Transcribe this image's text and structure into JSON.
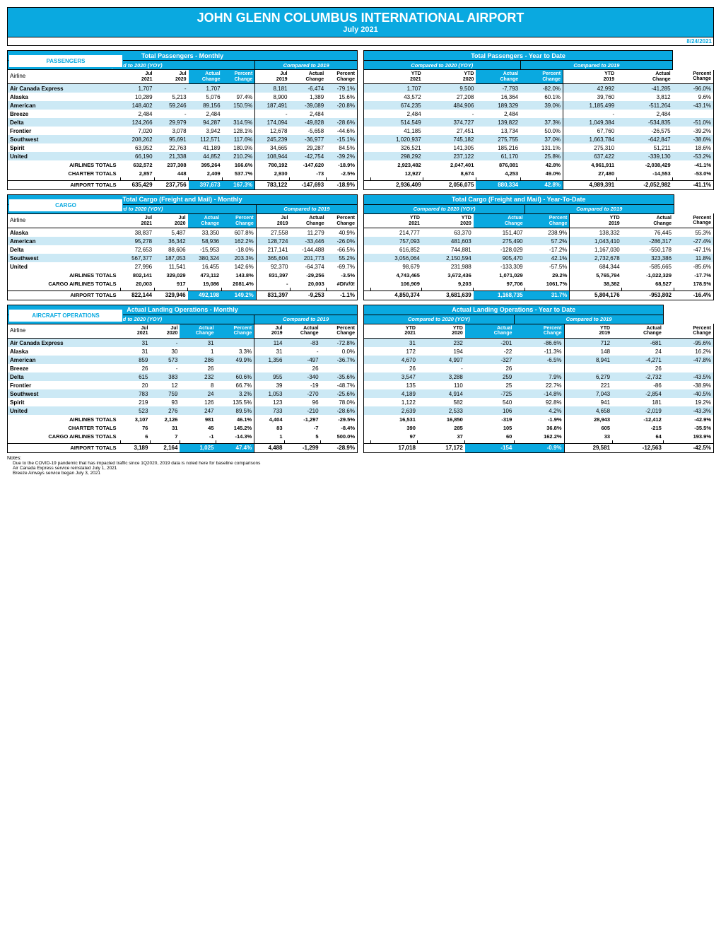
{
  "report": {
    "title": "JOHN GLENN COLUMBUS INTERNATIONAL AIRPORT",
    "subtitle": "July 2021",
    "date": "8/24/2021",
    "notes_header": "Notes:",
    "notes": [
      "Due to the COVID-19 pandemic that has impacted traffic since 1Q2020, 2019 data is noted here for baseline comparisons",
      "Air Canada Express service reinstated July 1, 2021",
      "Breeze Airways service began July 3, 2021"
    ]
  },
  "labels": {
    "passengers": "PASSENGERS",
    "cargo": "CARGO",
    "ops": "AIRCRAFT OPERATIONS",
    "pax_monthly": "Total Passengers - Monthly",
    "pax_ytd": "Total Passengers - Year to Date",
    "cargo_monthly": "Total Cargo (Freight and Mail) - Monthly",
    "cargo_ytd": "Total Cargo (Freight and Mail) - Year-To-Date",
    "ops_monthly": "Actual Landing Operations - Monthly",
    "ops_ytd": "Actual Landing Operations - Year to Date",
    "cmp2020": "Compared to 2020 (YOY)",
    "cmp2019": "Compared to 2019",
    "airline": "Airline",
    "jul2021": "Jul 2021",
    "jul2020": "Jul 2020",
    "jul2019": "Jul 2019",
    "ytd2021": "YTD 2021",
    "ytd2020": "YTD 2020",
    "ytd2019": "YTD 2019",
    "actual_change": "Actual Change",
    "percent_change": "Percent Change",
    "airlines_totals": "AIRLINES TOTALS",
    "charter_totals": "CHARTER TOTALS",
    "cargo_totals": "CARGO AIRLINES TOTALS",
    "airport_totals": "AIRPORT TOTALS"
  },
  "passengers": {
    "rows": [
      {
        "name": "Air Canada Express",
        "striped": true,
        "m": [
          "1,707",
          "-",
          "1,707",
          "",
          "8,181",
          "-6,474",
          "-79.1%"
        ],
        "y": [
          "1,707",
          "9,500",
          "-7,793",
          "-82.0%",
          "42,992",
          "-41,285",
          "-96.0%"
        ]
      },
      {
        "name": "Alaska",
        "striped": false,
        "m": [
          "10,289",
          "5,213",
          "5,076",
          "97.4%",
          "8,900",
          "1,389",
          "15.6%"
        ],
        "y": [
          "43,572",
          "27,208",
          "16,364",
          "60.1%",
          "39,760",
          "3,812",
          "9.6%"
        ]
      },
      {
        "name": "American",
        "striped": true,
        "m": [
          "148,402",
          "59,246",
          "89,156",
          "150.5%",
          "187,491",
          "-39,089",
          "-20.8%"
        ],
        "y": [
          "674,235",
          "484,906",
          "189,329",
          "39.0%",
          "1,185,499",
          "-511,264",
          "-43.1%"
        ]
      },
      {
        "name": "Breeze",
        "striped": false,
        "m": [
          "2,484",
          "-",
          "2,484",
          "",
          "-",
          "2,484",
          ""
        ],
        "y": [
          "2,484",
          "-",
          "2,484",
          "",
          "-",
          "2,484",
          ""
        ]
      },
      {
        "name": "Delta",
        "striped": true,
        "m": [
          "124,266",
          "29,979",
          "94,287",
          "314.5%",
          "174,094",
          "-49,828",
          "-28.6%"
        ],
        "y": [
          "514,549",
          "374,727",
          "139,822",
          "37.3%",
          "1,049,384",
          "-534,835",
          "-51.0%"
        ]
      },
      {
        "name": "Frontier",
        "striped": false,
        "m": [
          "7,020",
          "3,078",
          "3,942",
          "128.1%",
          "12,678",
          "-5,658",
          "-44.6%"
        ],
        "y": [
          "41,185",
          "27,451",
          "13,734",
          "50.0%",
          "67,760",
          "-26,575",
          "-39.2%"
        ]
      },
      {
        "name": "Southwest",
        "striped": true,
        "m": [
          "208,262",
          "95,691",
          "112,571",
          "117.6%",
          "245,239",
          "-36,977",
          "-15.1%"
        ],
        "y": [
          "1,020,937",
          "745,182",
          "275,755",
          "37.0%",
          "1,663,784",
          "-642,847",
          "-38.6%"
        ]
      },
      {
        "name": "Spirit",
        "striped": false,
        "m": [
          "63,952",
          "22,763",
          "41,189",
          "180.9%",
          "34,665",
          "29,287",
          "84.5%"
        ],
        "y": [
          "326,521",
          "141,305",
          "185,216",
          "131.1%",
          "275,310",
          "51,211",
          "18.6%"
        ]
      },
      {
        "name": "United",
        "striped": true,
        "m": [
          "66,190",
          "21,338",
          "44,852",
          "210.2%",
          "108,944",
          "-42,754",
          "-39.2%"
        ],
        "y": [
          "298,292",
          "237,122",
          "61,170",
          "25.8%",
          "637,422",
          "-339,130",
          "-53.2%"
        ]
      }
    ],
    "totals": [
      {
        "name": "AIRLINES TOTALS",
        "m": [
          "632,572",
          "237,308",
          "395,264",
          "166.6%",
          "780,192",
          "-147,620",
          "-18.9%"
        ],
        "y": [
          "2,923,482",
          "2,047,401",
          "876,081",
          "42.8%",
          "4,961,911",
          "-2,038,429",
          "-41.1%"
        ]
      },
      {
        "name": "CHARTER TOTALS",
        "m": [
          "2,857",
          "448",
          "2,409",
          "537.7%",
          "2,930",
          "-73",
          "-2.5%"
        ],
        "y": [
          "12,927",
          "8,674",
          "4,253",
          "49.0%",
          "27,480",
          "-14,553",
          "-53.0%"
        ]
      }
    ],
    "grand": {
      "name": "AIRPORT TOTALS",
      "m": [
        "635,429",
        "237,756",
        "397,673",
        "167.3%",
        "783,122",
        "-147,693",
        "-18.9%"
      ],
      "y": [
        "2,936,409",
        "2,056,075",
        "880,334",
        "42.8%",
        "4,989,391",
        "-2,052,982",
        "-41.1%"
      ]
    }
  },
  "cargo": {
    "rows": [
      {
        "name": "Alaska",
        "striped": false,
        "m": [
          "38,837",
          "5,487",
          "33,350",
          "607.8%",
          "27,558",
          "11,279",
          "40.9%"
        ],
        "y": [
          "214,777",
          "63,370",
          "151,407",
          "238.9%",
          "138,332",
          "76,445",
          "55.3%"
        ]
      },
      {
        "name": "American",
        "striped": true,
        "m": [
          "95,278",
          "36,342",
          "58,936",
          "162.2%",
          "128,724",
          "-33,446",
          "-26.0%"
        ],
        "y": [
          "757,093",
          "481,603",
          "275,490",
          "57.2%",
          "1,043,410",
          "-286,317",
          "-27.4%"
        ]
      },
      {
        "name": "Delta",
        "striped": false,
        "m": [
          "72,653",
          "88,606",
          "-15,953",
          "-18.0%",
          "217,141",
          "-144,488",
          "-66.5%"
        ],
        "y": [
          "616,852",
          "744,881",
          "-128,029",
          "-17.2%",
          "1,167,030",
          "-550,178",
          "-47.1%"
        ]
      },
      {
        "name": "Southwest",
        "striped": true,
        "m": [
          "567,377",
          "187,053",
          "380,324",
          "203.3%",
          "365,604",
          "201,773",
          "55.2%"
        ],
        "y": [
          "3,056,064",
          "2,150,594",
          "905,470",
          "42.1%",
          "2,732,678",
          "323,386",
          "11.8%"
        ]
      },
      {
        "name": "United",
        "striped": false,
        "m": [
          "27,996",
          "11,541",
          "16,455",
          "142.6%",
          "92,370",
          "-64,374",
          "-69.7%"
        ],
        "y": [
          "98,679",
          "231,988",
          "-133,309",
          "-57.5%",
          "684,344",
          "-585,665",
          "-85.6%"
        ]
      }
    ],
    "totals": [
      {
        "name": "AIRLINES TOTALS",
        "m": [
          "802,141",
          "329,029",
          "473,112",
          "143.8%",
          "831,397",
          "-29,256",
          "-3.5%"
        ],
        "y": [
          "4,743,465",
          "3,672,436",
          "1,071,029",
          "29.2%",
          "5,765,794",
          "-1,022,329",
          "-17.7%"
        ]
      },
      {
        "name": "CARGO AIRLINES TOTALS",
        "m": [
          "20,003",
          "917",
          "19,086",
          "2081.4%",
          "-",
          "20,003",
          "#DIV/0!"
        ],
        "y": [
          "106,909",
          "9,203",
          "97,706",
          "1061.7%",
          "38,382",
          "68,527",
          "178.5%"
        ]
      }
    ],
    "grand": {
      "name": "AIRPORT TOTALS",
      "m": [
        "822,144",
        "329,946",
        "492,198",
        "149.2%",
        "831,397",
        "-9,253",
        "-1.1%"
      ],
      "y": [
        "4,850,374",
        "3,681,639",
        "1,168,735",
        "31.7%",
        "5,804,176",
        "-953,802",
        "-16.4%"
      ]
    }
  },
  "ops": {
    "rows": [
      {
        "name": "Air Canada Express",
        "striped": true,
        "m": [
          "31",
          "-",
          "31",
          "",
          "114",
          "-83",
          "-72.8%"
        ],
        "y": [
          "31",
          "232",
          "-201",
          "-86.6%",
          "712",
          "-681",
          "-95.6%"
        ]
      },
      {
        "name": "Alaska",
        "striped": false,
        "m": [
          "31",
          "30",
          "1",
          "3.3%",
          "31",
          "-",
          "0.0%"
        ],
        "y": [
          "172",
          "194",
          "-22",
          "-11.3%",
          "148",
          "24",
          "16.2%"
        ]
      },
      {
        "name": "American",
        "striped": true,
        "m": [
          "859",
          "573",
          "286",
          "49.9%",
          "1,356",
          "-497",
          "-36.7%"
        ],
        "y": [
          "4,670",
          "4,997",
          "-327",
          "-6.5%",
          "8,941",
          "-4,271",
          "-47.8%"
        ]
      },
      {
        "name": "Breeze",
        "striped": false,
        "m": [
          "26",
          "-",
          "26",
          "",
          "",
          "26",
          ""
        ],
        "y": [
          "26",
          "-",
          "26",
          "",
          "",
          "26",
          ""
        ]
      },
      {
        "name": "Delta",
        "striped": true,
        "m": [
          "615",
          "383",
          "232",
          "60.6%",
          "955",
          "-340",
          "-35.6%"
        ],
        "y": [
          "3,547",
          "3,288",
          "259",
          "7.9%",
          "6,279",
          "-2,732",
          "-43.5%"
        ]
      },
      {
        "name": "Frontier",
        "striped": false,
        "m": [
          "20",
          "12",
          "8",
          "66.7%",
          "39",
          "-19",
          "-48.7%"
        ],
        "y": [
          "135",
          "110",
          "25",
          "22.7%",
          "221",
          "-86",
          "-38.9%"
        ]
      },
      {
        "name": "Southwest",
        "striped": true,
        "m": [
          "783",
          "759",
          "24",
          "3.2%",
          "1,053",
          "-270",
          "-25.6%"
        ],
        "y": [
          "4,189",
          "4,914",
          "-725",
          "-14.8%",
          "7,043",
          "-2,854",
          "-40.5%"
        ]
      },
      {
        "name": "Spirit",
        "striped": false,
        "m": [
          "219",
          "93",
          "126",
          "135.5%",
          "123",
          "96",
          "78.0%"
        ],
        "y": [
          "1,122",
          "582",
          "540",
          "92.8%",
          "941",
          "181",
          "19.2%"
        ]
      },
      {
        "name": "United",
        "striped": true,
        "m": [
          "523",
          "276",
          "247",
          "89.5%",
          "733",
          "-210",
          "-28.6%"
        ],
        "y": [
          "2,639",
          "2,533",
          "106",
          "4.2%",
          "4,658",
          "-2,019",
          "-43.3%"
        ]
      }
    ],
    "totals": [
      {
        "name": "AIRLINES TOTALS",
        "m": [
          "3,107",
          "2,126",
          "981",
          "46.1%",
          "4,404",
          "-1,297",
          "-29.5%"
        ],
        "y": [
          "16,531",
          "16,850",
          "-319",
          "-1.9%",
          "28,943",
          "-12,412",
          "-42.9%"
        ]
      },
      {
        "name": "CHARTER TOTALS",
        "m": [
          "76",
          "31",
          "45",
          "145.2%",
          "83",
          "-7",
          "-8.4%"
        ],
        "y": [
          "390",
          "285",
          "105",
          "36.8%",
          "605",
          "-215",
          "-35.5%"
        ]
      },
      {
        "name": "CARGO AIRLINES TOTALS",
        "m": [
          "6",
          "7",
          "-1",
          "-14.3%",
          "1",
          "5",
          "500.0%"
        ],
        "y": [
          "97",
          "37",
          "60",
          "162.2%",
          "33",
          "64",
          "193.9%"
        ]
      }
    ],
    "grand": {
      "name": "AIRPORT TOTALS",
      "m": [
        "3,189",
        "2,164",
        "1,025",
        "47.4%",
        "4,488",
        "-1,299",
        "-28.9%"
      ],
      "y": [
        "17,018",
        "17,172",
        "-154",
        "-0.9%",
        "29,581",
        "-12,563",
        "-42.5%"
      ]
    }
  }
}
